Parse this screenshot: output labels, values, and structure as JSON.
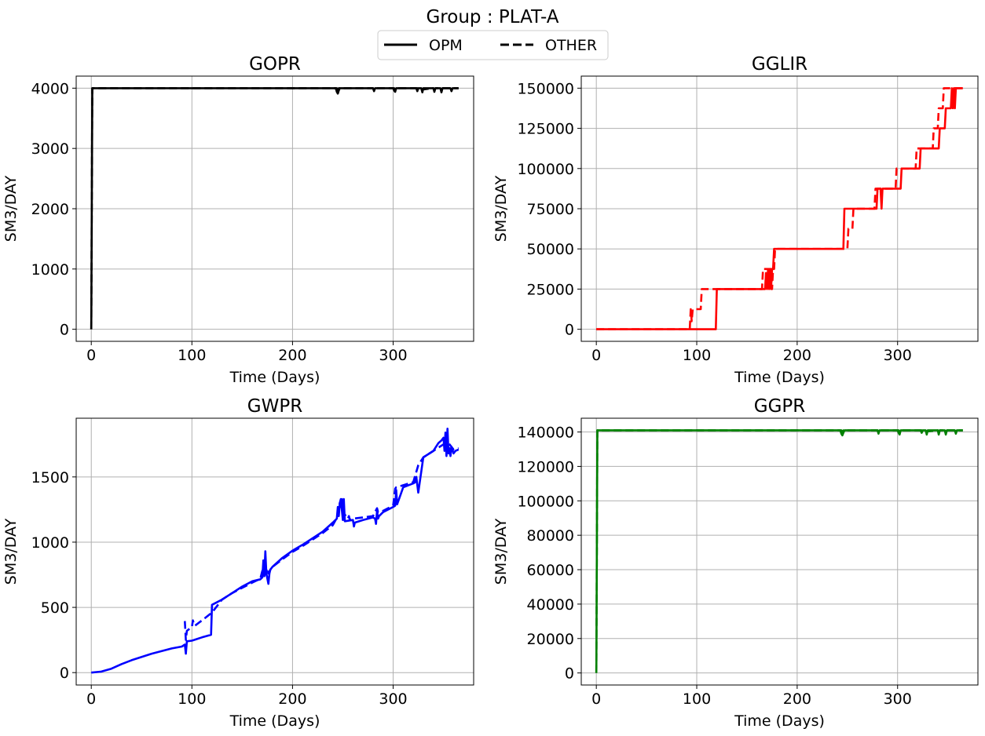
{
  "figure": {
    "suptitle": "Group : PLAT-A",
    "legend": {
      "placement": "top-center",
      "entries": [
        {
          "label": "OPM",
          "style": "solid"
        },
        {
          "label": "OTHER",
          "style": "dashed"
        }
      ]
    }
  },
  "chart_data": [
    {
      "type": "line",
      "title": "GOPR",
      "xlabel": "Time (Days)",
      "ylabel": "SM3/DAY",
      "xlim": [
        -15,
        380
      ],
      "ylim": [
        -200,
        4200
      ],
      "xticks": [
        0,
        100,
        200,
        300
      ],
      "yticks": [
        0,
        1000,
        2000,
        3000,
        4000
      ],
      "grid": true,
      "color": "#000000",
      "series": [
        {
          "name": "OPM",
          "style": "solid",
          "x": [
            0,
            1,
            243,
            244,
            245,
            246,
            247,
            280,
            281,
            282,
            300,
            301,
            302,
            303,
            323,
            324,
            325,
            328,
            329,
            330,
            340,
            341,
            342,
            347,
            348,
            349,
            357,
            358,
            359,
            365
          ],
          "y": [
            0,
            4000,
            4000,
            3940,
            3910,
            3960,
            4000,
            4000,
            3950,
            4000,
            4000,
            3960,
            3940,
            4000,
            4000,
            3950,
            4000,
            4000,
            3930,
            4000,
            4000,
            3940,
            4000,
            4000,
            3930,
            4000,
            4000,
            3950,
            4000,
            4000
          ]
        },
        {
          "name": "OTHER",
          "style": "dashed",
          "x": [
            0,
            1,
            244,
            245,
            246,
            280,
            281,
            282,
            301,
            302,
            303,
            324,
            325,
            340,
            341,
            342,
            365
          ],
          "y": [
            0,
            4000,
            4000,
            3970,
            4000,
            4000,
            3970,
            4000,
            4000,
            3970,
            4000,
            4000,
            3970,
            4000,
            3970,
            4000,
            4000
          ]
        }
      ]
    },
    {
      "type": "line",
      "title": "GGLIR",
      "xlabel": "Time (Days)",
      "ylabel": "SM3/DAY",
      "xlim": [
        -15,
        380
      ],
      "ylim": [
        -7500,
        157500
      ],
      "xticks": [
        0,
        100,
        200,
        300
      ],
      "yticks": [
        0,
        25000,
        50000,
        75000,
        100000,
        125000,
        150000
      ],
      "grid": true,
      "color": "#ff0000",
      "series": [
        {
          "name": "OPM",
          "style": "solid",
          "x": [
            0,
            119,
            120,
            168,
            169,
            170,
            171,
            172,
            173,
            174,
            175,
            176,
            177,
            178,
            246,
            247,
            279,
            280,
            281,
            283,
            284,
            285,
            303,
            304,
            322,
            323,
            341,
            342,
            347,
            348,
            353,
            354,
            355,
            356,
            357,
            358,
            359,
            365
          ],
          "y": [
            0,
            0,
            25000,
            25000,
            35000,
            25000,
            37500,
            25000,
            37500,
            25000,
            37500,
            37500,
            50000,
            50000,
            50000,
            75000,
            75000,
            87500,
            87500,
            87500,
            75000,
            87500,
            87500,
            100000,
            100000,
            112500,
            112500,
            125000,
            125000,
            137500,
            137500,
            150000,
            137500,
            150000,
            137500,
            150000,
            150000,
            150000
          ]
        },
        {
          "name": "OTHER",
          "style": "dashed",
          "x": [
            0,
            93,
            94,
            95,
            96,
            104,
            105,
            165,
            166,
            174,
            175,
            176,
            177,
            178,
            246,
            250,
            251,
            255,
            256,
            277,
            278,
            298,
            299,
            318,
            319,
            335,
            336,
            340,
            341,
            345,
            346,
            350,
            351,
            365
          ],
          "y": [
            0,
            0,
            12500,
            5000,
            12500,
            12500,
            25000,
            25000,
            37500,
            37500,
            25000,
            37500,
            37500,
            50000,
            50000,
            50000,
            62500,
            62500,
            75000,
            75000,
            87500,
            87500,
            100000,
            100000,
            112500,
            112500,
            125000,
            125000,
            137500,
            137500,
            150000,
            150000,
            150000,
            150000
          ]
        }
      ]
    },
    {
      "type": "line",
      "title": "GWPR",
      "xlabel": "Time (Days)",
      "ylabel": "SM3/DAY",
      "xlim": [
        -15,
        380
      ],
      "ylim": [
        -95,
        1950
      ],
      "xticks": [
        0,
        100,
        200,
        300
      ],
      "yticks": [
        0,
        500,
        1000,
        1500
      ],
      "grid": true,
      "color": "#0000ff",
      "series": [
        {
          "name": "OPM",
          "style": "solid",
          "x": [
            0,
            10,
            20,
            30,
            40,
            50,
            60,
            70,
            80,
            90,
            93,
            94,
            95,
            100,
            110,
            119,
            120,
            130,
            140,
            150,
            160,
            168,
            170,
            171,
            172,
            173,
            174,
            175,
            176,
            177,
            178,
            180,
            190,
            200,
            210,
            220,
            230,
            240,
            244,
            245,
            246,
            247,
            248,
            250,
            251,
            252,
            260,
            261,
            262,
            270,
            280,
            282,
            283,
            284,
            285,
            286,
            290,
            300,
            302,
            303,
            304,
            310,
            320,
            322,
            323,
            325,
            330,
            340,
            345,
            348,
            350,
            351,
            352,
            353,
            354,
            355,
            356,
            357,
            358,
            360,
            362,
            365
          ],
          "y": [
            0,
            8,
            30,
            65,
            95,
            120,
            145,
            165,
            185,
            200,
            215,
            145,
            240,
            245,
            270,
            290,
            520,
            560,
            610,
            660,
            700,
            715,
            730,
            860,
            740,
            930,
            760,
            720,
            680,
            760,
            790,
            810,
            880,
            935,
            980,
            1030,
            1080,
            1150,
            1180,
            1270,
            1200,
            1300,
            1330,
            1170,
            1330,
            1160,
            1170,
            1120,
            1150,
            1170,
            1190,
            1180,
            1140,
            1240,
            1180,
            1200,
            1230,
            1270,
            1280,
            1400,
            1290,
            1420,
            1450,
            1460,
            1500,
            1380,
            1650,
            1700,
            1760,
            1780,
            1800,
            1700,
            1840,
            1660,
            1870,
            1680,
            1720,
            1660,
            1730,
            1680,
            1700,
            1710
          ]
        },
        {
          "name": "OTHER",
          "style": "dashed",
          "x": [
            93,
            94,
            95,
            100,
            101,
            102,
            103,
            110,
            120,
            130,
            140,
            150,
            160,
            168,
            170,
            172,
            175,
            176,
            178,
            180,
            190,
            200,
            210,
            220,
            230,
            240,
            245,
            246,
            247,
            248,
            249,
            250,
            255,
            256,
            257,
            260,
            270,
            280,
            284,
            285,
            290,
            300,
            302,
            303,
            320,
            325,
            330,
            340,
            350,
            355,
            360,
            365
          ],
          "y": [
            395,
            250,
            320,
            350,
            400,
            370,
            360,
            400,
            460,
            560,
            610,
            650,
            690,
            720,
            780,
            740,
            800,
            760,
            790,
            810,
            870,
            925,
            970,
            1020,
            1070,
            1130,
            1200,
            1250,
            1300,
            1270,
            1330,
            1230,
            1180,
            1200,
            1170,
            1180,
            1190,
            1200,
            1260,
            1230,
            1240,
            1280,
            1410,
            1420,
            1460,
            1590,
            1650,
            1700,
            1750,
            1760,
            1710,
            1720
          ]
        }
      ]
    },
    {
      "type": "line",
      "title": "GGPR",
      "xlabel": "Time (Days)",
      "ylabel": "SM3/DAY",
      "xlim": [
        -15,
        380
      ],
      "ylim": [
        -7000,
        148000
      ],
      "xticks": [
        0,
        100,
        200,
        300
      ],
      "yticks": [
        0,
        20000,
        40000,
        60000,
        80000,
        100000,
        120000,
        140000
      ],
      "grid": true,
      "color": "#008000",
      "series": [
        {
          "name": "OPM",
          "style": "solid",
          "x": [
            0,
            1,
            243,
            244,
            245,
            246,
            247,
            280,
            281,
            282,
            300,
            301,
            302,
            303,
            323,
            324,
            325,
            328,
            329,
            330,
            340,
            341,
            342,
            347,
            348,
            349,
            357,
            358,
            359,
            365
          ],
          "y": [
            0,
            141000,
            141000,
            139000,
            138000,
            139500,
            141000,
            141000,
            139000,
            141000,
            141000,
            139500,
            138500,
            141000,
            141000,
            139500,
            141000,
            141000,
            138500,
            141000,
            141000,
            138500,
            141000,
            141000,
            138500,
            141000,
            141000,
            139000,
            141000,
            141000
          ]
        },
        {
          "name": "OTHER",
          "style": "dashed",
          "x": [
            0,
            1,
            244,
            245,
            246,
            280,
            281,
            282,
            301,
            302,
            303,
            324,
            325,
            340,
            341,
            342,
            365
          ],
          "y": [
            0,
            141000,
            141000,
            140000,
            141000,
            141000,
            140000,
            141000,
            141000,
            140000,
            141000,
            141000,
            140000,
            141000,
            140000,
            141000,
            141000
          ]
        }
      ]
    }
  ]
}
